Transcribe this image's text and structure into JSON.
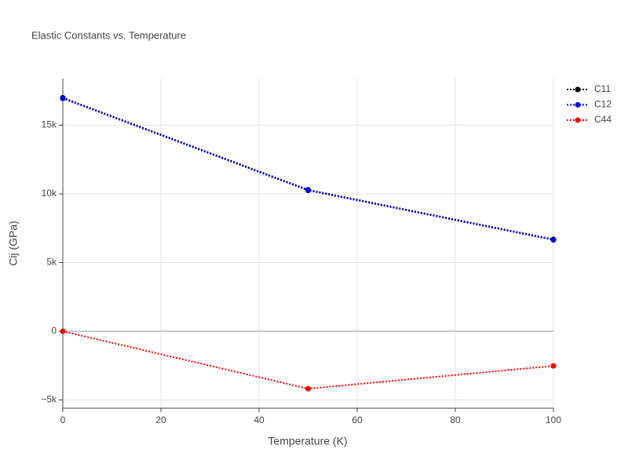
{
  "chart_data": {
    "type": "line",
    "title": "Elastic Constants vs. Temperature",
    "xlabel": "Temperature (K)",
    "ylabel": "Cij (GPa)",
    "x": [
      0,
      50,
      100
    ],
    "series": [
      {
        "name": "C11",
        "color": "#000000",
        "values": [
          17000,
          10300,
          6690
        ]
      },
      {
        "name": "C12",
        "color": "#0000ff",
        "values": [
          16950,
          10250,
          6650
        ]
      },
      {
        "name": "C44",
        "color": "#ff0000",
        "values": [
          0,
          -4180,
          -2520
        ]
      }
    ],
    "xlim": [
      0,
      100
    ],
    "xticks": [
      0,
      20,
      40,
      60,
      80,
      100
    ],
    "ylim": [
      -5600,
      18400
    ],
    "yticks": [
      {
        "value": -5000,
        "label": "−5k"
      },
      0,
      {
        "value": 5000,
        "label": "5k"
      },
      {
        "value": 10000,
        "label": "10k"
      },
      {
        "value": 15000,
        "label": "15k"
      }
    ],
    "grid": true,
    "legend": "top-right"
  }
}
